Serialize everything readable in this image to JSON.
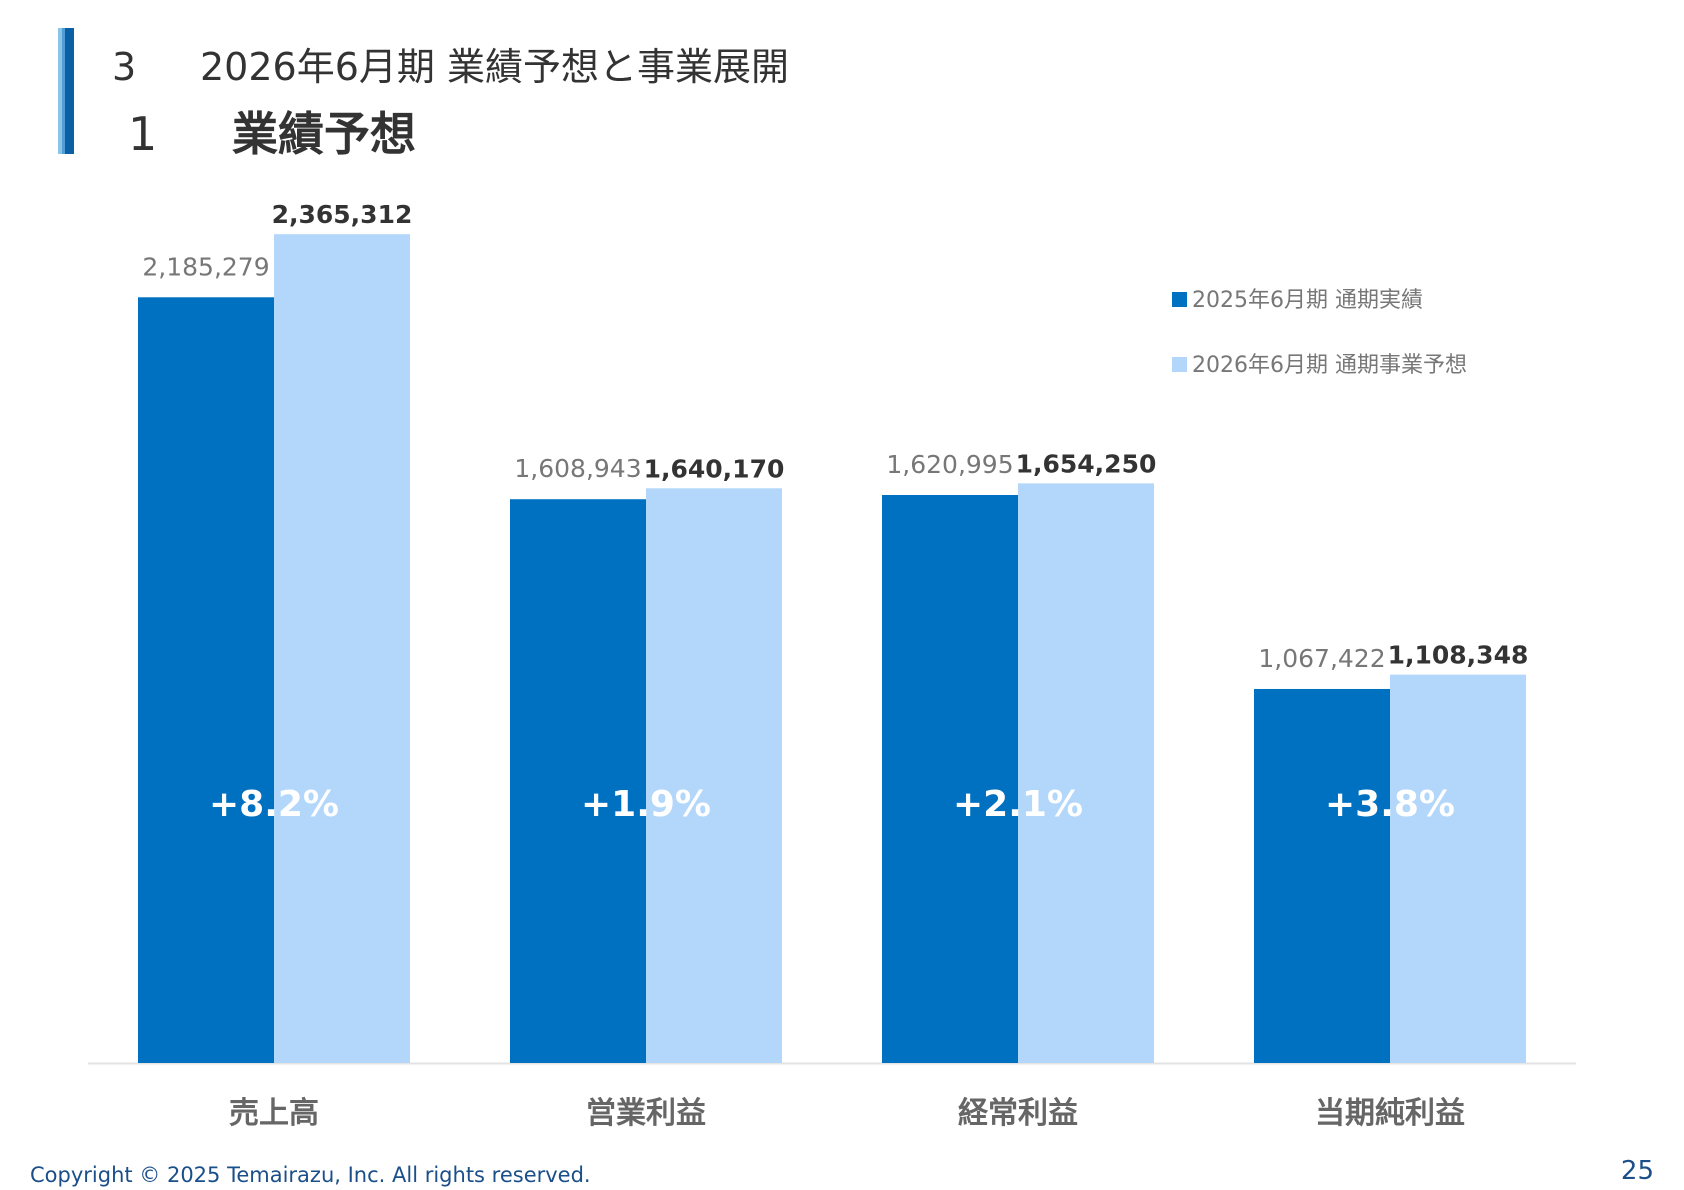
{
  "header": {
    "section_number": "3",
    "section_title": "2026年6月期 業績予想と事業展開",
    "subsection_number": "1",
    "subsection_title": "業績予想"
  },
  "chart_data": {
    "type": "bar",
    "categories": [
      "売上高",
      "営業利益",
      "経常利益",
      "当期純利益"
    ],
    "series": [
      {
        "name": "2025年6月期 通期実績",
        "values": [
          2185279,
          1608943,
          1620995,
          1067422
        ],
        "labels": [
          "2,185,279",
          "1,608,943",
          "1,620,995",
          "1,067,422"
        ],
        "color": "#0070c0"
      },
      {
        "name": "2026年6月期 通期事業予想",
        "values": [
          2365312,
          1640170,
          1654250,
          1108348
        ],
        "labels": [
          "2,365,312",
          "1,640,170",
          "1,654,250",
          "1,108,348"
        ],
        "color": "#b3d7fb"
      }
    ],
    "growth_labels": [
      "+8.2%",
      "+1.9%",
      "+2.1%",
      "+3.8%"
    ],
    "ylim": [
      0,
      2500000
    ],
    "grid": false,
    "legend_position": "top-right"
  },
  "footer": {
    "copyright": "Copyright © 2025 Temairazu, Inc. All rights reserved.",
    "page_number": "25"
  }
}
